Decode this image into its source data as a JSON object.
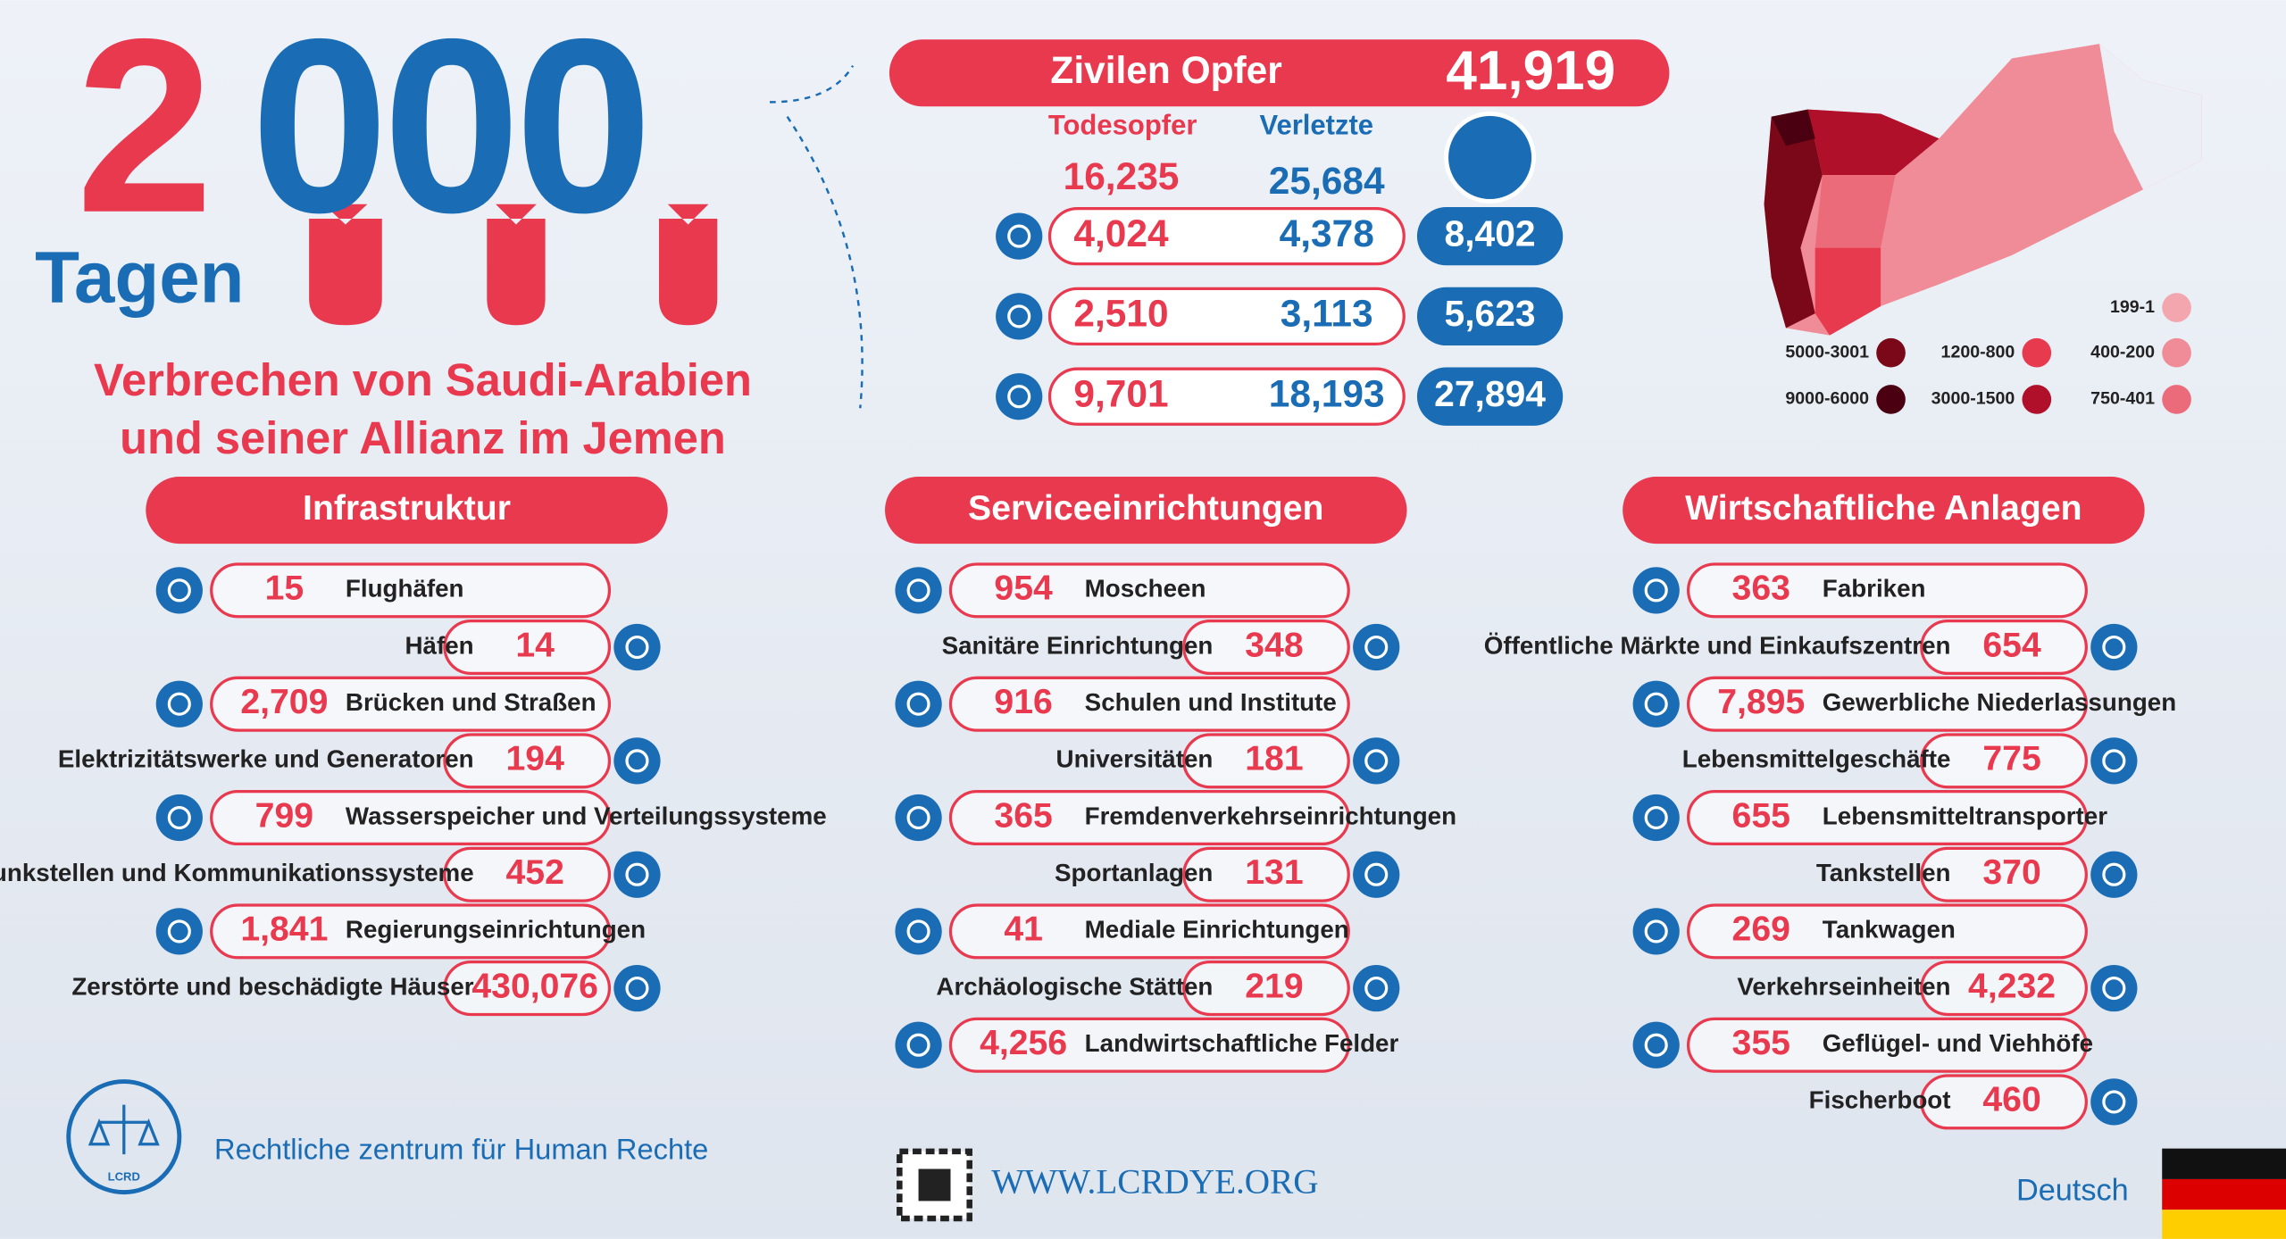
{
  "header": {
    "big_number_first": "2",
    "big_number_rest": "000",
    "days": "Tagen",
    "subtitle_lines": [
      "Verbrechen von Saudi-Arabien",
      "und seiner Allianz im Jemen"
    ]
  },
  "casualties": {
    "title": "Zivilen Opfer",
    "total": "41,919",
    "col_deaths": "Todesopfer",
    "col_injured": "Verletzte",
    "deaths_total": "16,235",
    "injured_total": "25,684",
    "rows": [
      {
        "deaths": "4,024",
        "injured": "4,378",
        "total": "8,402"
      },
      {
        "deaths": "2,510",
        "injured": "3,113",
        "total": "5,623"
      },
      {
        "deaths": "9,701",
        "injured": "18,193",
        "total": "27,894"
      }
    ]
  },
  "map_legend": [
    {
      "label": "199-1",
      "color": "#f4a6ae"
    },
    {
      "label": "400-200",
      "color": "#f08c97"
    },
    {
      "label": "750-401",
      "color": "#ec6b7b"
    },
    {
      "label": "1200-800",
      "color": "#e83a4e"
    },
    {
      "label": "3000-1500",
      "color": "#b0102a"
    },
    {
      "label": "5000-3001",
      "color": "#7a0818"
    },
    {
      "label": "9000-6000",
      "color": "#4a0010"
    }
  ],
  "sections": [
    {
      "title": "Infrastruktur",
      "items": [
        {
          "value": "15",
          "label": "Flughäfen"
        },
        {
          "value": "14",
          "label": "Häfen"
        },
        {
          "value": "2,709",
          "label": "Brücken und Straßen"
        },
        {
          "value": "194",
          "label": "Elektrizitätswerke und Generatoren"
        },
        {
          "value": "799",
          "label": "Wasserspeicher und Verteilungssysteme"
        },
        {
          "value": "452",
          "label": "Funkstellen und Kommunikationssysteme"
        },
        {
          "value": "1,841",
          "label": "Regierungseinrichtungen"
        },
        {
          "value": "430,076",
          "label": "Zerstörte und beschädigte Häuser"
        }
      ]
    },
    {
      "title": "Serviceeinrichtungen",
      "items": [
        {
          "value": "954",
          "label": "Moscheen"
        },
        {
          "value": "348",
          "label": "Sanitäre Einrichtungen"
        },
        {
          "value": "916",
          "label": "Schulen und Institute"
        },
        {
          "value": "181",
          "label": "Universitäten"
        },
        {
          "value": "365",
          "label": "Fremdenverkehrseinrichtungen"
        },
        {
          "value": "131",
          "label": "Sportanlagen"
        },
        {
          "value": "41",
          "label": "Mediale Einrichtungen"
        },
        {
          "value": "219",
          "label": "Archäologische Stätten"
        },
        {
          "value": "4,256",
          "label": "Landwirtschaftliche Felder"
        }
      ]
    },
    {
      "title": "Wirtschaftliche Anlagen",
      "items": [
        {
          "value": "363",
          "label": "Fabriken"
        },
        {
          "value": "654",
          "label": "Öffentliche Märkte und Einkaufszentren"
        },
        {
          "value": "7,895",
          "label": "Gewerbliche Niederlassungen"
        },
        {
          "value": "775",
          "label": "Lebensmittelgeschäfte"
        },
        {
          "value": "655",
          "label": "Lebensmitteltransporter"
        },
        {
          "value": "370",
          "label": "Tankstellen"
        },
        {
          "value": "269",
          "label": "Tankwagen"
        },
        {
          "value": "4,232",
          "label": "Verkehrseinheiten"
        },
        {
          "value": "355",
          "label": "Geflügel- und Viehhöfe"
        },
        {
          "value": "460",
          "label": "Fischerboot"
        }
      ]
    }
  ],
  "footer": {
    "logo_text": "LCRD",
    "org": "Rechtliche zentrum für Human Rechte",
    "website": "WWW.LCRDYE.ORG",
    "language": "Deutsch"
  }
}
